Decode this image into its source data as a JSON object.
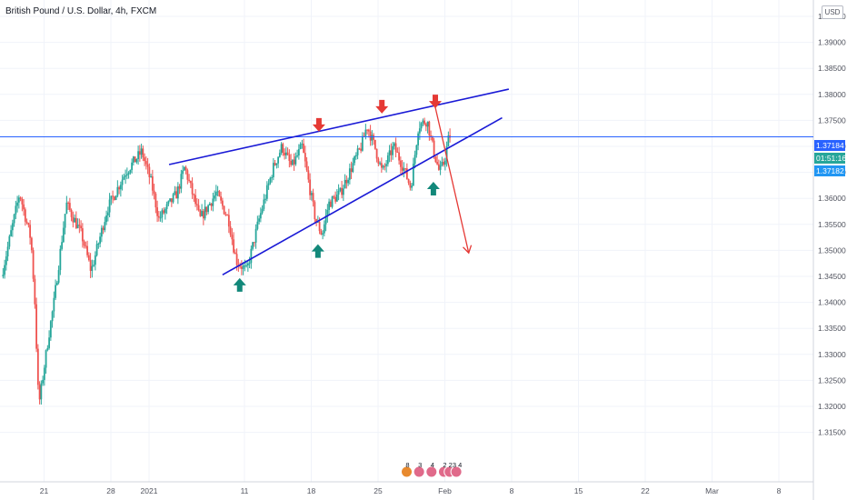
{
  "header": {
    "title": "British Pound / U.S. Dollar, 4h, FXCM",
    "currency": "USD"
  },
  "price_axis": {
    "ticks": [
      "1.39500",
      "1.39000",
      "1.38500",
      "1.38000",
      "1.37500",
      "1.37000",
      "1.36500",
      "1.36000",
      "1.35500",
      "1.35000",
      "1.34500",
      "1.34000",
      "1.33500",
      "1.33000",
      "1.32500",
      "1.32000",
      "1.31500"
    ],
    "last_price_label": "1.37184",
    "countdown_label": "01:51:16",
    "bid_label": "1.37182"
  },
  "time_axis": {
    "ticks": [
      {
        "label": "21",
        "day": -11
      },
      {
        "label": "28",
        "day": -4
      },
      {
        "label": "2021",
        "day": 0
      },
      {
        "label": "11",
        "day": 10
      },
      {
        "label": "18",
        "day": 17
      },
      {
        "label": "25",
        "day": 24
      },
      {
        "label": "Feb",
        "day": 31
      },
      {
        "label": "8",
        "day": 38
      },
      {
        "label": "15",
        "day": 45
      },
      {
        "label": "22",
        "day": 52
      },
      {
        "label": "Mar",
        "day": 59
      },
      {
        "label": "8",
        "day": 66
      }
    ]
  },
  "colors": {
    "up": "#26a69a",
    "down": "#ef5350",
    "wedge": "#1a1ad6",
    "price_line": "#2962ff",
    "projection": "#e53935",
    "bull_arrow": "#12887a",
    "bear_arrow": "#e53935",
    "grid": "#f0f3fa"
  },
  "event_markers": [
    {
      "label": "8",
      "color": "#e88a2e",
      "day": 27.0
    },
    {
      "label": "3",
      "color": "#e06a8a",
      "day": 28.3
    },
    {
      "label": "4",
      "color": "#e06a8a",
      "day": 29.6
    },
    {
      "label": "2",
      "color": "#e06a8a",
      "day": 30.9
    },
    {
      "label": "2",
      "color": "#e06a8a",
      "day": 31.5
    },
    {
      "label": "3 4",
      "color": "#e06a8a",
      "day": 32.2
    }
  ],
  "chart_data": {
    "type": "candlestick",
    "title": "British Pound / U.S. Dollar, 4h, FXCM",
    "interval": "4h",
    "yrange": [
      1.31,
      1.398
    ],
    "xrange_days": [
      -15.5,
      71.0
    ],
    "last_price": 1.37184,
    "bid": 1.37182,
    "candles_anchor_ohlc": [
      {
        "day": -15.3,
        "price": 1.345
      },
      {
        "day": -13.4,
        "price": 1.361
      },
      {
        "day": -12.2,
        "price": 1.352
      },
      {
        "day": -11.8,
        "price": 1.34
      },
      {
        "day": -11.4,
        "price": 1.32
      },
      {
        "day": -10.4,
        "price": 1.333
      },
      {
        "day": -9.8,
        "price": 1.34
      },
      {
        "day": -8.5,
        "price": 1.359
      },
      {
        "day": -6.9,
        "price": 1.353
      },
      {
        "day": -5.9,
        "price": 1.346
      },
      {
        "day": -4.2,
        "price": 1.358
      },
      {
        "day": -2.3,
        "price": 1.365
      },
      {
        "day": -0.6,
        "price": 1.369
      },
      {
        "day": 0.4,
        "price": 1.363
      },
      {
        "day": 1.2,
        "price": 1.356
      },
      {
        "day": 3.1,
        "price": 1.361
      },
      {
        "day": 3.9,
        "price": 1.366
      },
      {
        "day": 5.5,
        "price": 1.356
      },
      {
        "day": 7.2,
        "price": 1.361
      },
      {
        "day": 8.5,
        "price": 1.356
      },
      {
        "day": 9.3,
        "price": 1.348
      },
      {
        "day": 10.4,
        "price": 1.346
      },
      {
        "day": 11.7,
        "price": 1.356
      },
      {
        "day": 13.2,
        "price": 1.366
      },
      {
        "day": 14.1,
        "price": 1.37
      },
      {
        "day": 15.1,
        "price": 1.366
      },
      {
        "day": 16.2,
        "price": 1.37
      },
      {
        "day": 17.0,
        "price": 1.362
      },
      {
        "day": 17.6,
        "price": 1.356
      },
      {
        "day": 18.3,
        "price": 1.353
      },
      {
        "day": 19.0,
        "price": 1.359
      },
      {
        "day": 20.2,
        "price": 1.361
      },
      {
        "day": 21.4,
        "price": 1.366
      },
      {
        "day": 22.4,
        "price": 1.37
      },
      {
        "day": 23.0,
        "price": 1.374
      },
      {
        "day": 23.8,
        "price": 1.37
      },
      {
        "day": 24.6,
        "price": 1.365
      },
      {
        "day": 25.8,
        "price": 1.37
      },
      {
        "day": 26.8,
        "price": 1.366
      },
      {
        "day": 27.6,
        "price": 1.362
      },
      {
        "day": 28.4,
        "price": 1.374
      },
      {
        "day": 29.3,
        "price": 1.375
      },
      {
        "day": 30.0,
        "price": 1.369
      },
      {
        "day": 30.6,
        "price": 1.365
      },
      {
        "day": 31.1,
        "price": 1.367
      },
      {
        "day": 31.6,
        "price": 1.372
      }
    ],
    "drawings": {
      "wedge_upper": [
        {
          "day": 2.1,
          "price": 1.3665
        },
        {
          "day": 37.7,
          "price": 1.381
        }
      ],
      "wedge_lower": [
        {
          "day": 7.7,
          "price": 1.3453
        },
        {
          "day": 37.0,
          "price": 1.3755
        }
      ],
      "horizontal_price": 1.37184,
      "projection": [
        {
          "day": 30.0,
          "price": 1.3775
        },
        {
          "day": 33.5,
          "price": 1.3495
        }
      ],
      "bearish_arrows": [
        {
          "day": 17.8,
          "price": 1.373
        },
        {
          "day": 24.4,
          "price": 1.3765
        },
        {
          "day": 30.0,
          "price": 1.3775
        }
      ],
      "bullish_arrows": [
        {
          "day": 9.5,
          "price": 1.3445
        },
        {
          "day": 17.7,
          "price": 1.351
        },
        {
          "day": 29.8,
          "price": 1.363
        }
      ]
    }
  }
}
